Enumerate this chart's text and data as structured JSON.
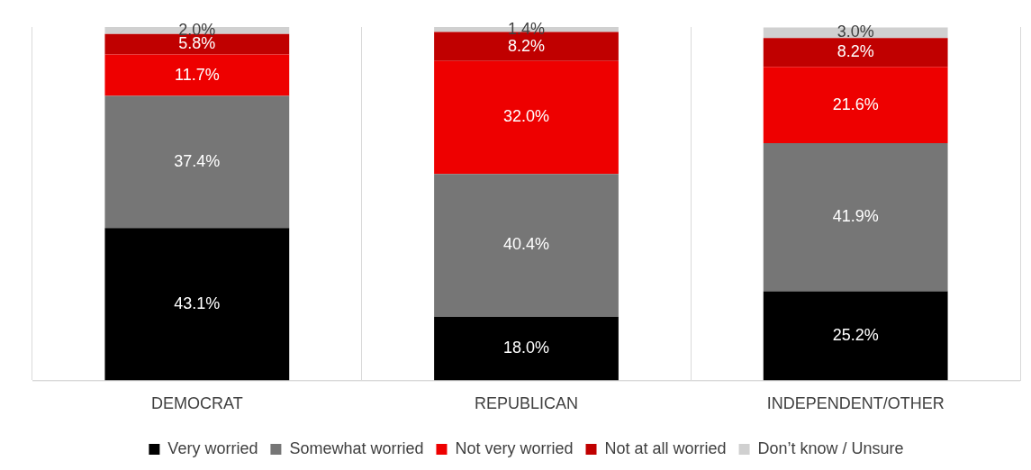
{
  "chart_data": {
    "type": "bar",
    "stacked": true,
    "categories": [
      "DEMOCRAT",
      "REPUBLICAN",
      "INDEPENDENT/OTHER"
    ],
    "series": [
      {
        "name": "Very worried",
        "color": "#000000",
        "values": [
          43.1,
          18.0,
          25.2
        ],
        "value_labels": [
          "43.1%",
          "18.0%",
          "25.2%"
        ]
      },
      {
        "name": "Somewhat worried",
        "color": "#767676",
        "values": [
          37.4,
          40.4,
          41.9
        ],
        "value_labels": [
          "37.4%",
          "40.4%",
          "41.9%"
        ]
      },
      {
        "name": "Not very worried",
        "color": "#ee0000",
        "values": [
          11.7,
          32.0,
          21.6
        ],
        "value_labels": [
          "11.7%",
          "32.0%",
          "21.6%"
        ]
      },
      {
        "name": "Not at all worried",
        "color": "#c00000",
        "values": [
          5.8,
          8.2,
          8.2
        ],
        "value_labels": [
          "5.8%",
          "8.2%",
          "8.2%"
        ]
      },
      {
        "name": "Don’t know / Unsure",
        "color": "#d0d0d0",
        "values": [
          2.0,
          1.4,
          3.0
        ],
        "value_labels": [
          "2.0%",
          "1.4%",
          "3.0%"
        ]
      }
    ],
    "grid": "x",
    "legend": "bottom",
    "tick_labels": "x"
  }
}
